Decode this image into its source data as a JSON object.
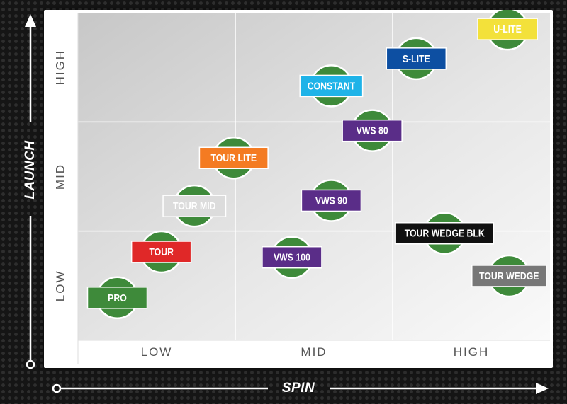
{
  "chart_data": {
    "type": "scatter",
    "xlabel": "SPIN",
    "ylabel": "LAUNCH",
    "x_categories": [
      "LOW",
      "MID",
      "HIGH"
    ],
    "y_categories": [
      "LOW",
      "MID",
      "HIGH"
    ],
    "xlim": [
      0,
      3
    ],
    "ylim": [
      0,
      3
    ],
    "grid": true,
    "label_color": "#ffffff",
    "dot_color": "#3e8a3a",
    "points": [
      {
        "name": "U-LITE",
        "spin": 2.73,
        "launch": 2.85,
        "color": "#f3e13a",
        "text_color": "#ffffff"
      },
      {
        "name": "S-LITE",
        "spin": 2.15,
        "launch": 2.58,
        "color": "#0d4fa2",
        "text_color": "#ffffff"
      },
      {
        "name": "CONSTANT",
        "spin": 1.61,
        "launch": 2.33,
        "color": "#1fb3e8",
        "text_color": "#ffffff"
      },
      {
        "name": "VWS 80",
        "spin": 1.87,
        "launch": 1.92,
        "color": "#5a2d88",
        "text_color": "#ffffff"
      },
      {
        "name": "TOUR LITE",
        "spin": 0.99,
        "launch": 1.67,
        "color": "#f47b22",
        "text_color": "#ffffff"
      },
      {
        "name": "VWS 90",
        "spin": 1.61,
        "launch": 1.28,
        "color": "#5a2d88",
        "text_color": "#ffffff"
      },
      {
        "name": "TOUR MID",
        "spin": 0.74,
        "launch": 1.23,
        "color": "#dcdcdc",
        "text_color": "#ffffff"
      },
      {
        "name": "TOUR WEDGE BLK",
        "spin": 2.33,
        "launch": 0.98,
        "color": "#111111",
        "text_color": "#ffffff"
      },
      {
        "name": "TOUR",
        "spin": 0.53,
        "launch": 0.81,
        "color": "#e02828",
        "text_color": "#ffffff"
      },
      {
        "name": "VWS 100",
        "spin": 1.36,
        "launch": 0.76,
        "color": "#5a2d88",
        "text_color": "#ffffff"
      },
      {
        "name": "TOUR WEDGE",
        "spin": 2.74,
        "launch": 0.59,
        "color": "#777777",
        "text_color": "#ffffff"
      },
      {
        "name": "PRO",
        "spin": 0.25,
        "launch": 0.39,
        "color": "#3e8a3a",
        "text_color": "#ffffff"
      }
    ]
  }
}
